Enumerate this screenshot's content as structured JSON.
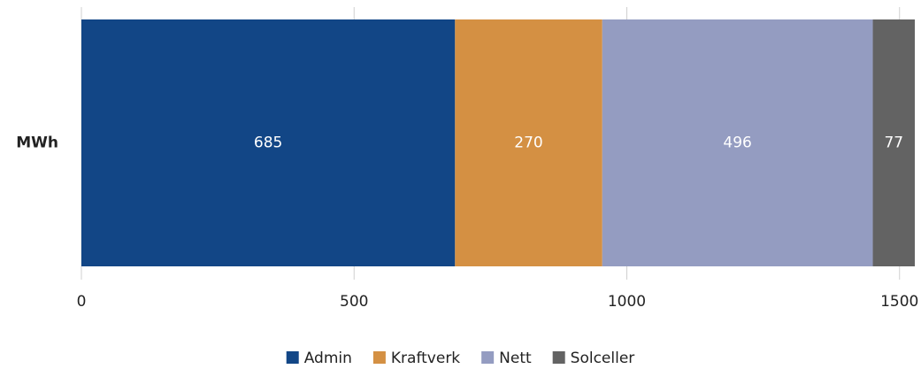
{
  "chart_data": {
    "type": "stacked-bar-horizontal",
    "categories": [
      "MWh"
    ],
    "series": [
      {
        "name": "Admin",
        "color": "#124686",
        "values": [
          685
        ]
      },
      {
        "name": "Kraftverk",
        "color": "#d49043",
        "values": [
          270
        ]
      },
      {
        "name": "Nett",
        "color": "#949cc1",
        "values": [
          496
        ]
      },
      {
        "name": "Solceller",
        "color": "#636363",
        "values": [
          77
        ]
      }
    ],
    "xlim": [
      0,
      1528
    ],
    "xticks": [
      0,
      500,
      1000,
      1500
    ],
    "grid": true,
    "legend": "bottom"
  }
}
